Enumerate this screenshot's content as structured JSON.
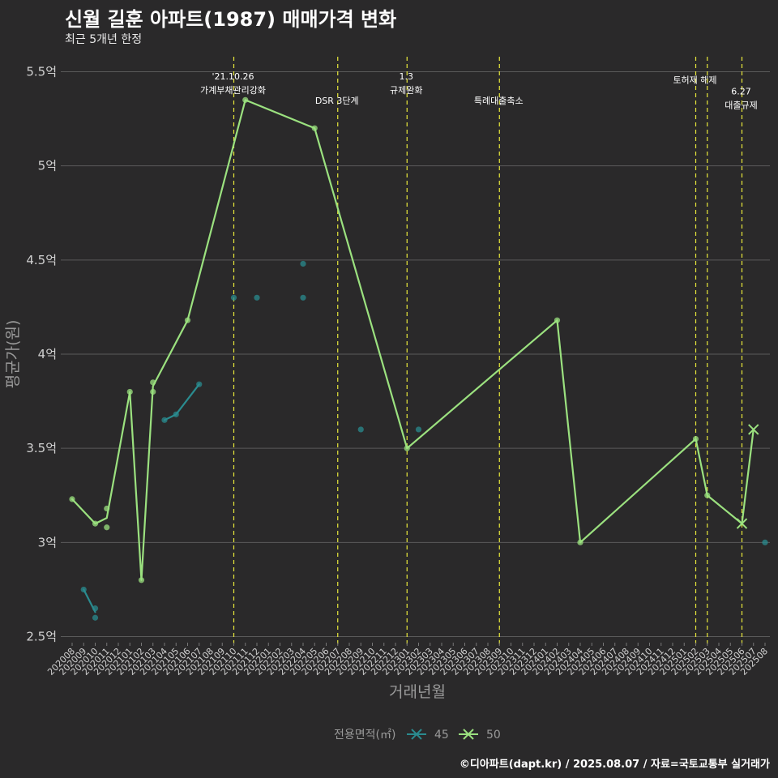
{
  "chart_data": {
    "type": "line",
    "title": "신월 길훈 아파트(1987) 매매가격 변화",
    "subtitle": "최근 5개년 한정",
    "xlabel": "거래년월",
    "ylabel": "평균가(원)",
    "caption": "©디아파트(dapt.kr) / 2025.08.07 / 자료=국토교통부 실거래가",
    "legend_title": "전용면적(㎡)",
    "legend_position": "bottom",
    "grid": "y-major",
    "ylim": [
      2.5,
      5.55
    ],
    "yticks": [
      "2.5억",
      "3억",
      "3.5억",
      "4억",
      "4.5억",
      "5억",
      "5.5억"
    ],
    "ytick_values": [
      2.5,
      3.0,
      3.5,
      4.0,
      4.5,
      5.0,
      5.5
    ],
    "categories": [
      "202008",
      "202009",
      "202010",
      "202011",
      "202012",
      "202101",
      "202102",
      "202103",
      "202104",
      "202105",
      "202106",
      "202107",
      "202108",
      "202109",
      "202110",
      "202111",
      "202112",
      "202201",
      "202202",
      "202203",
      "202204",
      "202205",
      "202206",
      "202207",
      "202208",
      "202209",
      "202210",
      "202211",
      "202212",
      "202301",
      "202302",
      "202303",
      "202304",
      "202305",
      "202306",
      "202307",
      "202308",
      "202309",
      "202310",
      "202311",
      "202312",
      "202401",
      "202402",
      "202403",
      "202404",
      "202405",
      "202406",
      "202407",
      "202408",
      "202409",
      "202410",
      "202411",
      "202412",
      "202501",
      "202502",
      "202503",
      "202504",
      "202505",
      "202506",
      "202507",
      "202508"
    ],
    "series": [
      {
        "name": "45",
        "color": "#2a8b8f",
        "line": [
          [
            "202009",
            2.75
          ],
          [
            "202010",
            2.63
          ]
        ],
        "line2": [
          [
            "202104",
            3.65
          ],
          [
            "202105",
            3.68
          ],
          [
            "202107",
            3.84
          ]
        ],
        "points": [
          [
            "202009",
            2.75
          ],
          [
            "202010",
            2.65
          ],
          [
            "202010",
            2.6
          ],
          [
            "202104",
            3.65
          ],
          [
            "202105",
            3.68
          ],
          [
            "202107",
            3.84
          ],
          [
            "202110",
            4.3
          ],
          [
            "202112",
            4.3
          ],
          [
            "202204",
            4.3
          ],
          [
            "202204",
            4.48
          ],
          [
            "202209",
            3.6
          ],
          [
            "202302",
            3.6
          ],
          [
            "202508",
            3.0
          ]
        ]
      },
      {
        "name": "50",
        "color": "#9be17f",
        "line": [
          [
            "202008",
            3.23
          ],
          [
            "202010",
            3.1
          ],
          [
            "202011",
            3.13
          ],
          [
            "202101",
            3.8
          ],
          [
            "202102",
            2.8
          ],
          [
            "202103",
            3.83
          ],
          [
            "202106",
            4.18
          ],
          [
            "202111",
            5.35
          ],
          [
            "202205",
            5.2
          ],
          [
            "202301",
            3.5
          ],
          [
            "202402",
            4.18
          ],
          [
            "202404",
            3.0
          ],
          [
            "202502",
            3.55
          ],
          [
            "202503",
            3.25
          ],
          [
            "202506",
            3.1
          ],
          [
            "202507",
            3.6
          ]
        ],
        "points": [
          [
            "202008",
            3.23
          ],
          [
            "202010",
            3.1
          ],
          [
            "202011",
            3.18
          ],
          [
            "202011",
            3.08
          ],
          [
            "202101",
            3.8
          ],
          [
            "202102",
            2.8
          ],
          [
            "202103",
            3.85
          ],
          [
            "202103",
            3.8
          ],
          [
            "202106",
            4.18
          ],
          [
            "202111",
            5.35
          ],
          [
            "202205",
            5.2
          ],
          [
            "202301",
            3.5
          ],
          [
            "202402",
            4.18
          ],
          [
            "202404",
            3.0
          ],
          [
            "202502",
            3.55
          ],
          [
            "202503",
            3.25
          ]
        ],
        "cross_points": [
          [
            "202506",
            3.1
          ],
          [
            "202507",
            3.6
          ]
        ]
      }
    ],
    "events": [
      {
        "x": "202110",
        "lines": [
          "'21.10.26",
          "가계부채관리강화"
        ],
        "label_y": 5.46
      },
      {
        "x": "202207",
        "lines": [
          "DSR 3단계"
        ],
        "label_y": 5.33
      },
      {
        "x": "202301",
        "lines": [
          "1.3",
          "규제완화"
        ],
        "label_y": 5.46
      },
      {
        "x": "202309",
        "lines": [
          "특례대출축소"
        ],
        "label_y": 5.33
      },
      {
        "x": "202502",
        "lines": [
          "토허제 해제"
        ],
        "label_y": 5.44
      },
      {
        "x": "202503",
        "lines": [],
        "label_y": 5.44
      },
      {
        "x": "202506",
        "lines": [
          "6.27",
          "대출규제"
        ],
        "label_y": 5.38
      }
    ]
  }
}
